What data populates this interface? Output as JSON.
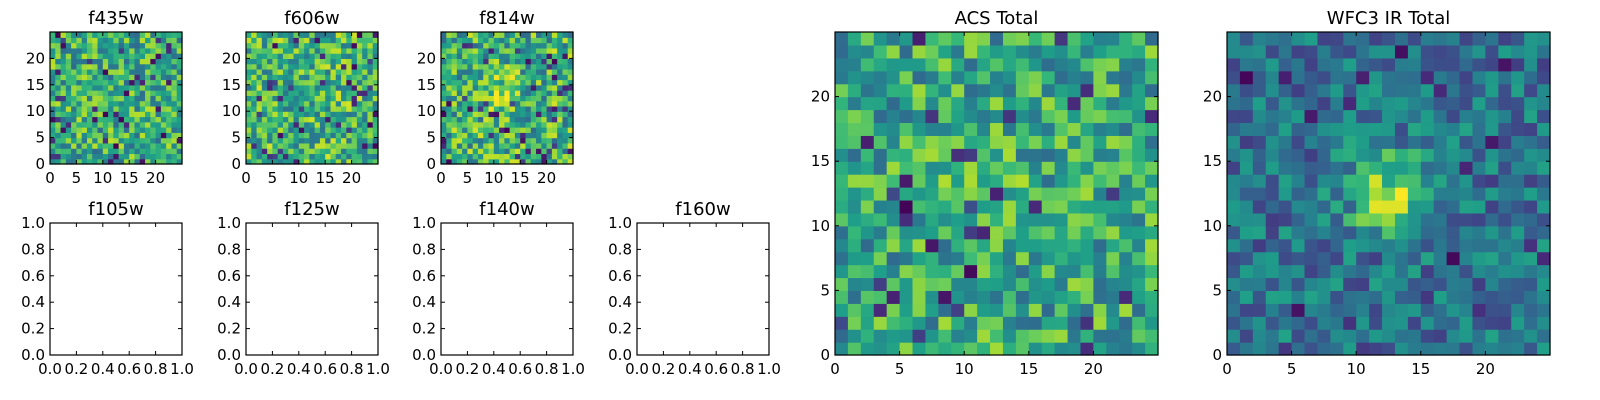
{
  "colormap": "viridis",
  "colors": {
    "background": "#ffffff",
    "axis": "#000000"
  },
  "chart_data": [
    {
      "id": "f435w",
      "type": "heatmap",
      "title": "f435w",
      "grid_size": 25,
      "xlim": [
        0,
        25
      ],
      "ylim": [
        0,
        25
      ],
      "xticks": [
        "0",
        "5",
        "10",
        "15",
        "20"
      ],
      "yticks": [
        "0",
        "5",
        "10",
        "15",
        "20"
      ],
      "seed": 11,
      "base": 0.62,
      "spread": 0.28,
      "peak": 0.0,
      "peak_center": [
        12,
        12
      ],
      "dark_rate": 0.06
    },
    {
      "id": "f606w",
      "type": "heatmap",
      "title": "f606w",
      "grid_size": 25,
      "xlim": [
        0,
        25
      ],
      "ylim": [
        0,
        25
      ],
      "xticks": [
        "0",
        "5",
        "10",
        "15",
        "20"
      ],
      "yticks": [
        "0",
        "5",
        "10",
        "15",
        "20"
      ],
      "seed": 23,
      "base": 0.66,
      "spread": 0.28,
      "peak": 0.0,
      "peak_center": [
        12,
        12
      ],
      "dark_rate": 0.06
    },
    {
      "id": "f814w",
      "type": "heatmap",
      "title": "f814w",
      "grid_size": 25,
      "xlim": [
        0,
        25
      ],
      "ylim": [
        0,
        25
      ],
      "xticks": [
        "0",
        "5",
        "10",
        "15",
        "20"
      ],
      "yticks": [
        "0",
        "5",
        "10",
        "15",
        "20"
      ],
      "seed": 37,
      "base": 0.64,
      "spread": 0.3,
      "peak": 0.18,
      "peak_center": [
        11,
        13
      ],
      "dark_rate": 0.07
    },
    {
      "id": "f105w",
      "type": "empty",
      "title": "f105w",
      "xlim": [
        0,
        1
      ],
      "ylim": [
        0,
        1
      ],
      "xticks": [
        "0.0",
        "0.2",
        "0.4",
        "0.6",
        "0.8",
        "1.0"
      ],
      "yticks": [
        "0.0",
        "0.2",
        "0.4",
        "0.6",
        "0.8",
        "1.0"
      ]
    },
    {
      "id": "f125w",
      "type": "empty",
      "title": "f125w",
      "xlim": [
        0,
        1
      ],
      "ylim": [
        0,
        1
      ],
      "xticks": [
        "0.0",
        "0.2",
        "0.4",
        "0.6",
        "0.8",
        "1.0"
      ],
      "yticks": [
        "0.0",
        "0.2",
        "0.4",
        "0.6",
        "0.8",
        "1.0"
      ]
    },
    {
      "id": "f140w",
      "type": "empty",
      "title": "f140w",
      "xlim": [
        0,
        1
      ],
      "ylim": [
        0,
        1
      ],
      "xticks": [
        "0.0",
        "0.2",
        "0.4",
        "0.6",
        "0.8",
        "1.0"
      ],
      "yticks": [
        "0.0",
        "0.2",
        "0.4",
        "0.6",
        "0.8",
        "1.0"
      ]
    },
    {
      "id": "f160w",
      "type": "empty",
      "title": "f160w",
      "xlim": [
        0,
        1
      ],
      "ylim": [
        0,
        1
      ],
      "xticks": [
        "0.0",
        "0.2",
        "0.4",
        "0.6",
        "0.8",
        "1.0"
      ],
      "yticks": [
        "0.0",
        "0.2",
        "0.4",
        "0.6",
        "0.8",
        "1.0"
      ]
    },
    {
      "id": "acs_total",
      "type": "heatmap",
      "title": "ACS Total",
      "grid_size": 25,
      "xlim": [
        0,
        25
      ],
      "ylim": [
        0,
        25
      ],
      "xticks": [
        "0",
        "5",
        "10",
        "15",
        "20"
      ],
      "yticks": [
        "0",
        "5",
        "10",
        "15",
        "20"
      ],
      "seed": 51,
      "base": 0.6,
      "spread": 0.26,
      "peak": 0.08,
      "peak_center": [
        11,
        12
      ],
      "dark_rate": 0.06
    },
    {
      "id": "wfc3_ir_total",
      "type": "heatmap",
      "title": "WFC3 IR Total",
      "grid_size": 25,
      "xlim": [
        0,
        25
      ],
      "ylim": [
        0,
        25
      ],
      "xticks": [
        "0",
        "5",
        "10",
        "15",
        "20"
      ],
      "yticks": [
        "0",
        "5",
        "10",
        "15",
        "20"
      ],
      "seed": 77,
      "base": 0.38,
      "spread": 0.2,
      "peak": 0.55,
      "peak_center": [
        12,
        12
      ],
      "dark_rate": 0.05
    }
  ]
}
